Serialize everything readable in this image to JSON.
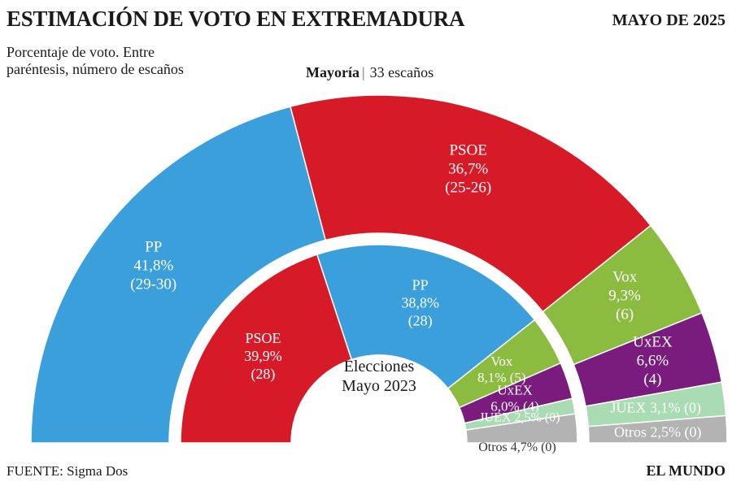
{
  "header": {
    "title": "ESTIMACIÓN DE VOTO EN EXTREMADURA",
    "date": "MAYO DE 2025",
    "subtitle": "Porcentaje de voto. Entre paréntesis, número de escaños"
  },
  "majority": {
    "label": "Mayoría",
    "value": "33 escaños"
  },
  "footer": {
    "source": "FUENTE: Sigma Dos",
    "brand": "EL MUNDO"
  },
  "chart_data": [
    {
      "type": "pie",
      "variant": "semicircle",
      "title": "",
      "slices": [
        {
          "party": "PP",
          "value": 41.8,
          "pct": "41,8%",
          "seats": "(29-30)",
          "color": "#3a9fdb"
        },
        {
          "party": "PSOE",
          "value": 36.7,
          "pct": "36,7%",
          "seats": "(25-26)",
          "color": "#d71a28"
        },
        {
          "party": "Vox",
          "value": 9.3,
          "pct": "9,3%",
          "seats": "(6)",
          "color": "#8bbb3f"
        },
        {
          "party": "UxEX",
          "value": 6.6,
          "pct": "6,6%",
          "seats": "(4)",
          "color": "#7a1c7e"
        },
        {
          "party": "JUEX",
          "value": 3.1,
          "pct": "3,1%",
          "seats": "(0)",
          "color": "#a9dcb2"
        },
        {
          "party": "Otros",
          "value": 2.5,
          "pct": "2,5%",
          "seats": "(0)",
          "color": "#b3b3b3"
        }
      ]
    },
    {
      "type": "pie",
      "variant": "semicircle",
      "title": "Elecciones Mayo 2023",
      "title_lines": [
        "Elecciones",
        "Mayo 2023"
      ],
      "slices": [
        {
          "party": "PSOE",
          "value": 39.9,
          "pct": "39,9%",
          "seats": "(28)",
          "color": "#d71a28"
        },
        {
          "party": "PP",
          "value": 38.8,
          "pct": "38,8%",
          "seats": "(28)",
          "color": "#3a9fdb"
        },
        {
          "party": "Vox",
          "value": 8.1,
          "pct": "8,1%",
          "seats": "(5)",
          "color": "#8bbb3f"
        },
        {
          "party": "UxEX",
          "value": 6.0,
          "pct": "6,0%",
          "seats": "(4)",
          "color": "#7a1c7e"
        },
        {
          "party": "JUEX",
          "value": 2.5,
          "pct": "2,5%",
          "seats": "(0)",
          "color": "#a9dcb2"
        },
        {
          "party": "Otros",
          "value": 4.7,
          "pct": "4,7%",
          "seats": "(0)",
          "color": "#b3b3b3"
        }
      ]
    }
  ]
}
